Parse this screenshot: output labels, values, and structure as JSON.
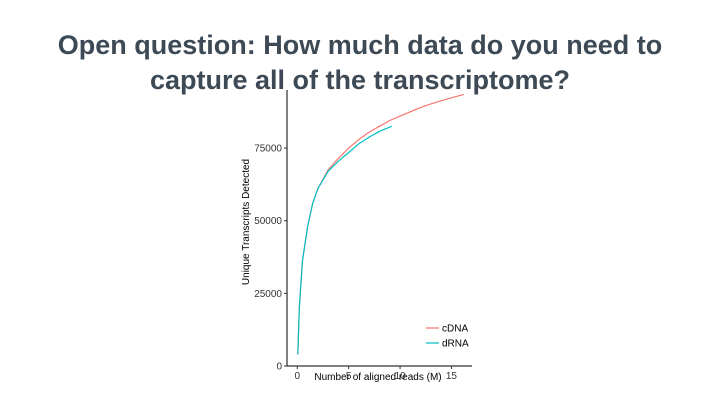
{
  "slide": {
    "title_line1": "Open question: How much data do you need to",
    "title_line2": "capture all of the transcriptome?"
  },
  "chart_data": {
    "type": "line",
    "xlabel": "Number of aligned reads (M)",
    "ylabel": "Unique Transcripts Detected",
    "xlim": [
      -1,
      17
    ],
    "ylim": [
      0,
      95000
    ],
    "xticks": [
      0,
      5,
      10,
      15
    ],
    "yticks": [
      0,
      25000,
      50000,
      75000
    ],
    "grid": false,
    "legend_position": "bottom-right",
    "series": [
      {
        "name": "cDNA",
        "color": "#f8766d",
        "x": [
          0.05,
          0.2,
          0.5,
          1,
          1.5,
          2,
          3,
          4,
          5,
          6,
          7,
          8,
          9,
          10,
          11,
          12,
          13,
          14,
          15,
          16.2
        ],
        "y": [
          4000,
          20000,
          36000,
          48000,
          56000,
          61000,
          67500,
          71500,
          75000,
          78000,
          80500,
          82500,
          84500,
          86000,
          87500,
          89000,
          90200,
          91300,
          92300,
          93500
        ]
      },
      {
        "name": "dRNA",
        "color": "#00bfc4",
        "x": [
          0.05,
          0.2,
          0.5,
          1,
          1.5,
          2,
          3,
          4,
          5,
          6,
          7,
          8,
          9.2
        ],
        "y": [
          4000,
          20000,
          36000,
          48000,
          56000,
          61000,
          67000,
          70500,
          73500,
          76500,
          78800,
          80800,
          82500
        ]
      }
    ]
  }
}
